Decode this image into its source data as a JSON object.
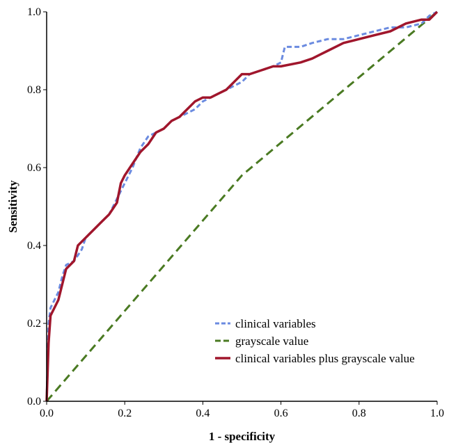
{
  "chart_data": {
    "type": "line",
    "title": "",
    "xlabel": "1 - specificity",
    "ylabel": "Sensitivity",
    "xlim": [
      0,
      1
    ],
    "ylim": [
      0,
      1
    ],
    "xticks": [
      "0.0",
      "0.2",
      "0.4",
      "0.6",
      "0.8",
      "1.0"
    ],
    "yticks": [
      "0.0",
      "0.2",
      "0.4",
      "0.6",
      "0.8",
      "1.0"
    ],
    "grid": false,
    "legend_position": "bottom-right",
    "series": [
      {
        "name": "clinical variables",
        "color": "#6b8be0",
        "style": "dashed",
        "x": [
          0,
          0.005,
          0.01,
          0.02,
          0.03,
          0.04,
          0.05,
          0.07,
          0.09,
          0.1,
          0.12,
          0.14,
          0.16,
          0.18,
          0.2,
          0.22,
          0.24,
          0.26,
          0.28,
          0.3,
          0.32,
          0.34,
          0.36,
          0.38,
          0.4,
          0.42,
          0.44,
          0.46,
          0.48,
          0.5,
          0.52,
          0.55,
          0.58,
          0.6,
          0.61,
          0.65,
          0.68,
          0.72,
          0.76,
          0.8,
          0.84,
          0.88,
          0.92,
          0.96,
          0.98,
          1.0
        ],
        "y": [
          0,
          0.2,
          0.24,
          0.26,
          0.28,
          0.32,
          0.35,
          0.36,
          0.39,
          0.42,
          0.44,
          0.46,
          0.48,
          0.52,
          0.56,
          0.6,
          0.65,
          0.68,
          0.69,
          0.7,
          0.72,
          0.73,
          0.74,
          0.75,
          0.77,
          0.78,
          0.79,
          0.8,
          0.81,
          0.82,
          0.84,
          0.85,
          0.86,
          0.87,
          0.91,
          0.91,
          0.92,
          0.93,
          0.93,
          0.94,
          0.95,
          0.96,
          0.96,
          0.97,
          0.99,
          1.0
        ]
      },
      {
        "name": "grayscale value",
        "color": "#4a7a22",
        "style": "dashed",
        "x": [
          0,
          0.5,
          1.0
        ],
        "y": [
          0,
          0.58,
          1.0
        ]
      },
      {
        "name": "clinical variables plus grayscale value",
        "color": "#a0162c",
        "style": "solid",
        "x": [
          0,
          0.005,
          0.01,
          0.02,
          0.03,
          0.04,
          0.05,
          0.07,
          0.08,
          0.1,
          0.12,
          0.14,
          0.16,
          0.18,
          0.19,
          0.2,
          0.22,
          0.24,
          0.26,
          0.28,
          0.3,
          0.32,
          0.34,
          0.36,
          0.38,
          0.4,
          0.42,
          0.44,
          0.46,
          0.48,
          0.5,
          0.52,
          0.55,
          0.58,
          0.6,
          0.65,
          0.68,
          0.7,
          0.72,
          0.74,
          0.76,
          0.8,
          0.84,
          0.88,
          0.92,
          0.96,
          0.98,
          1.0
        ],
        "y": [
          0,
          0.15,
          0.22,
          0.24,
          0.26,
          0.3,
          0.34,
          0.36,
          0.4,
          0.42,
          0.44,
          0.46,
          0.48,
          0.51,
          0.56,
          0.58,
          0.61,
          0.64,
          0.66,
          0.69,
          0.7,
          0.72,
          0.73,
          0.75,
          0.77,
          0.78,
          0.78,
          0.79,
          0.8,
          0.82,
          0.84,
          0.84,
          0.85,
          0.86,
          0.86,
          0.87,
          0.88,
          0.89,
          0.9,
          0.91,
          0.92,
          0.93,
          0.94,
          0.95,
          0.97,
          0.98,
          0.98,
          1.0
        ]
      }
    ]
  }
}
